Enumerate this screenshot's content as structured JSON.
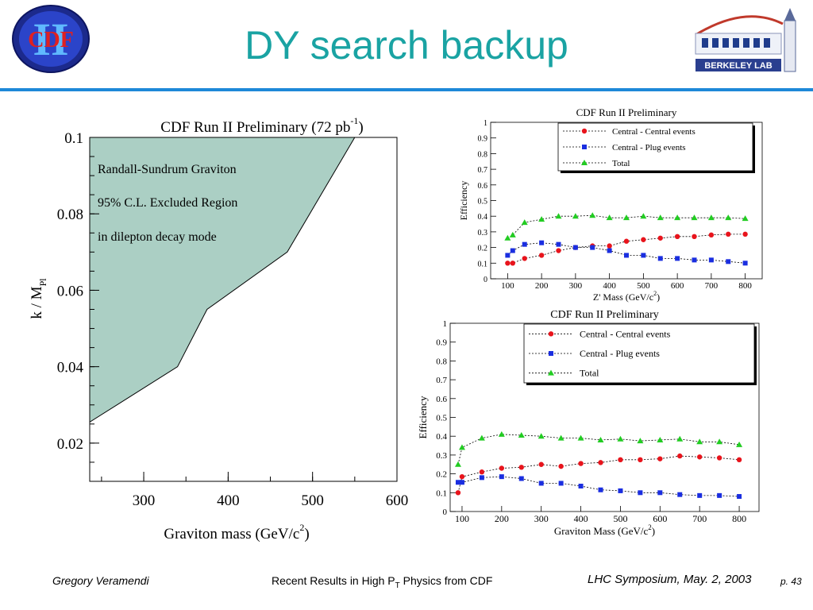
{
  "slide": {
    "title": "DY search backup",
    "footer_author": "Gregory Veramendi",
    "footer_center_pre": "Recent Results in High P",
    "footer_center_sub": "T",
    "footer_center_post": " Physics from CDF",
    "footer_right": "LHC Symposium, May. 2, 2003",
    "page_label": "p. 43"
  },
  "logos": {
    "cdf_text": "CDF",
    "cdf_roman": "II",
    "berkeley_text": "BERKELEY LAB"
  },
  "colors": {
    "title": "#1aa3a3",
    "rule": "#1e88d8",
    "excluded_fill": "#abcfc4",
    "central_central": "#e8141c",
    "central_plug": "#1a2ee0",
    "total": "#22cc22"
  },
  "chart_data": [
    {
      "type": "area",
      "title": "CDF Run II Preliminary (72 pb",
      "title_sup": "-1",
      "title_end": ")",
      "xlabel": "Graviton mass (GeV/c",
      "xlabel_sup": "2",
      "xlabel_end": ")",
      "ylabel": "k / M",
      "ylabel_sub": "Pl",
      "xlim": [
        236,
        600
      ],
      "ylim": [
        0.01,
        0.1
      ],
      "xticks": [
        "300",
        "400",
        "500",
        "600"
      ],
      "yticks": [
        "0.02",
        "0.04",
        "0.06",
        "0.08",
        "0.1"
      ],
      "annotations": [
        "Randall-Sundrum Graviton",
        "95% C.L. Excluded Region",
        "in dilepton decay mode"
      ],
      "boundary": {
        "x": [
          236,
          340,
          375,
          470,
          550
        ],
        "y": [
          0.0255,
          0.04,
          0.055,
          0.07,
          0.1
        ]
      }
    },
    {
      "type": "line",
      "title": "CDF Run II Preliminary",
      "xlabel": "Z' Mass (GeV/c",
      "xlabel_sup": "2",
      "xlabel_end": ")",
      "ylabel": "Efficiency",
      "xlim": [
        50,
        850
      ],
      "ylim": [
        0,
        1
      ],
      "xticks": [
        "100",
        "200",
        "300",
        "400",
        "500",
        "600",
        "700",
        "800"
      ],
      "yticks": [
        "0",
        "0.1",
        "0.2",
        "0.3",
        "0.4",
        "0.5",
        "0.6",
        "0.7",
        "0.8",
        "0.9",
        "1"
      ],
      "x": [
        100,
        115,
        150,
        200,
        250,
        300,
        350,
        400,
        450,
        500,
        550,
        600,
        650,
        700,
        750,
        800
      ],
      "series": [
        {
          "name": "Central - Central events",
          "values": [
            0.1,
            0.1,
            0.13,
            0.15,
            0.18,
            0.2,
            0.21,
            0.21,
            0.24,
            0.25,
            0.26,
            0.27,
            0.27,
            0.28,
            0.285,
            0.285
          ]
        },
        {
          "name": "Central - Plug events",
          "values": [
            0.15,
            0.18,
            0.22,
            0.23,
            0.22,
            0.2,
            0.2,
            0.18,
            0.15,
            0.15,
            0.13,
            0.13,
            0.12,
            0.12,
            0.11,
            0.1
          ]
        },
        {
          "name": "Total",
          "values": [
            0.26,
            0.28,
            0.36,
            0.38,
            0.4,
            0.4,
            0.405,
            0.39,
            0.39,
            0.4,
            0.39,
            0.39,
            0.39,
            0.39,
            0.39,
            0.385
          ]
        }
      ]
    },
    {
      "type": "line",
      "title": "CDF Run II Preliminary",
      "xlabel": "Graviton Mass (GeV/c",
      "xlabel_sup": "2",
      "xlabel_end": ")",
      "ylabel": "Efficiency",
      "xlim": [
        70,
        850
      ],
      "ylim": [
        0,
        1
      ],
      "xticks": [
        "100",
        "200",
        "300",
        "400",
        "500",
        "600",
        "700",
        "800"
      ],
      "yticks": [
        "0",
        "0.1",
        "0.2",
        "0.3",
        "0.4",
        "0.5",
        "0.6",
        "0.7",
        "0.8",
        "0.9",
        "1"
      ],
      "x": [
        90,
        100,
        150,
        200,
        250,
        300,
        350,
        400,
        450,
        500,
        550,
        600,
        650,
        700,
        750,
        800
      ],
      "series": [
        {
          "name": "Central - Central events",
          "values": [
            0.1,
            0.185,
            0.21,
            0.23,
            0.235,
            0.25,
            0.24,
            0.255,
            0.26,
            0.275,
            0.275,
            0.28,
            0.295,
            0.29,
            0.285,
            0.275
          ]
        },
        {
          "name": "Central - Plug events",
          "values": [
            0.155,
            0.155,
            0.18,
            0.185,
            0.175,
            0.15,
            0.15,
            0.135,
            0.115,
            0.11,
            0.1,
            0.1,
            0.09,
            0.085,
            0.085,
            0.08
          ]
        },
        {
          "name": "Total",
          "values": [
            0.25,
            0.34,
            0.39,
            0.41,
            0.405,
            0.4,
            0.39,
            0.39,
            0.38,
            0.385,
            0.375,
            0.38,
            0.385,
            0.37,
            0.37,
            0.355
          ]
        }
      ]
    }
  ]
}
